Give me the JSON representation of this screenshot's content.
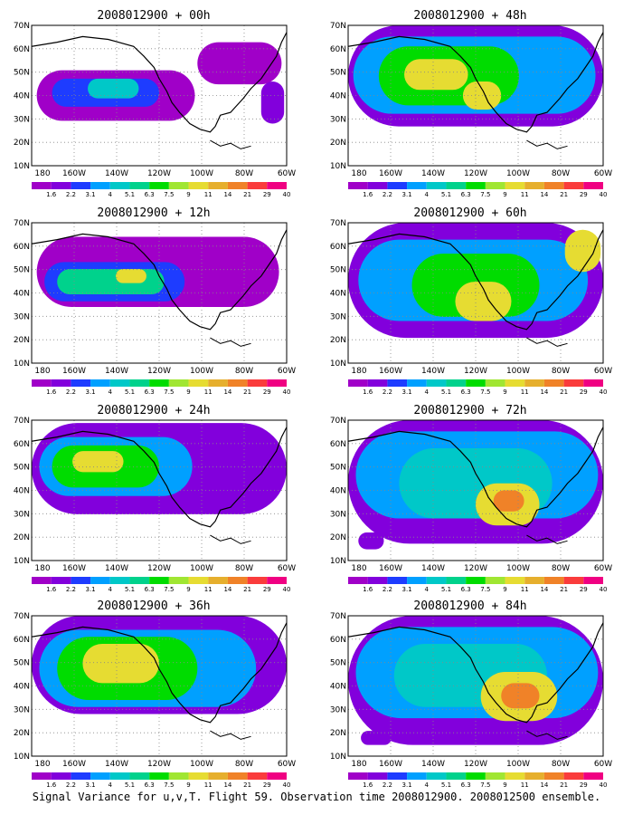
{
  "panels": [
    {
      "title": "2008012900 + 00h",
      "lead": "00h"
    },
    {
      "title": "2008012900 + 48h",
      "lead": "48h"
    },
    {
      "title": "2008012900 + 12h",
      "lead": "12h"
    },
    {
      "title": "2008012900 + 60h",
      "lead": "60h"
    },
    {
      "title": "2008012900 + 24h",
      "lead": "24h"
    },
    {
      "title": "2008012900 + 72h",
      "lead": "72h"
    },
    {
      "title": "2008012900 + 36h",
      "lead": "36h"
    },
    {
      "title": "2008012900 + 84h",
      "lead": "84h"
    }
  ],
  "axes": {
    "lat_labels": [
      "70N",
      "60N",
      "50N",
      "40N",
      "30N",
      "20N",
      "10N"
    ],
    "lon_labels": [
      "180",
      "160W",
      "140W",
      "120W",
      "100W",
      "80W",
      "60W"
    ]
  },
  "colorbar": {
    "labels": [
      "1.6",
      "2.2",
      "3.1",
      "4",
      "5.1",
      "6.3",
      "7.5",
      "9",
      "11",
      "14",
      "21",
      "29",
      "40"
    ],
    "colors": [
      "#a000c8",
      "#8200dc",
      "#1e3cff",
      "#00a0ff",
      "#00c8c8",
      "#00d28c",
      "#00dc00",
      "#a0e632",
      "#e6dc32",
      "#e6af2d",
      "#f08228",
      "#fa3c3c",
      "#f00082"
    ]
  },
  "footer": "Signal Variance for u,v,T. Flight 59. Observation time 2008012900. 2008012500 ensemble."
}
